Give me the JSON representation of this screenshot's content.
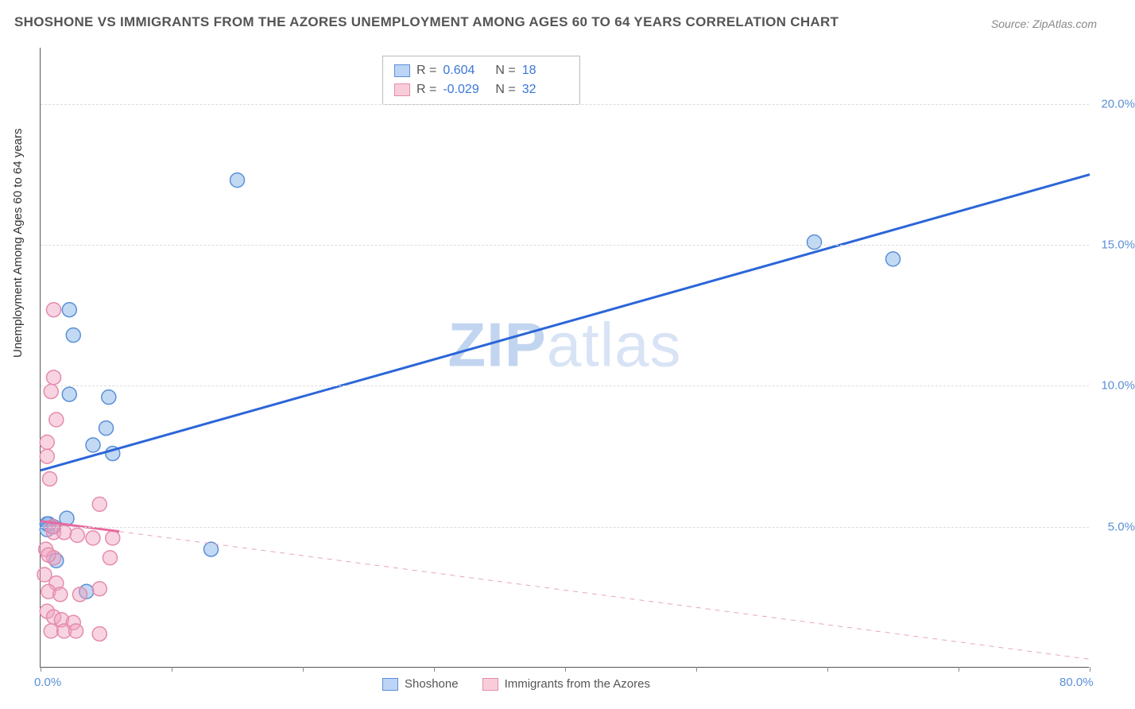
{
  "title": "SHOSHONE VS IMMIGRANTS FROM THE AZORES UNEMPLOYMENT AMONG AGES 60 TO 64 YEARS CORRELATION CHART",
  "source": "Source: ZipAtlas.com",
  "watermark_zip": "ZIP",
  "watermark_atlas": "atlas",
  "y_axis_label": "Unemployment Among Ages 60 to 64 years",
  "chart": {
    "type": "scatter",
    "xlim": [
      0,
      80
    ],
    "ylim": [
      0,
      22
    ],
    "xticks": [
      0,
      10,
      20,
      30,
      40,
      50,
      60,
      70,
      80
    ],
    "xtick_labels": {
      "0": "0.0%",
      "80": "80.0%"
    },
    "yticks": [
      5,
      10,
      15,
      20
    ],
    "ytick_labels": {
      "5": "5.0%",
      "10": "10.0%",
      "15": "15.0%",
      "20": "20.0%"
    },
    "background_color": "#ffffff",
    "grid_color": "#dddddd",
    "axis_color": "#555555",
    "tick_label_color": "#5b8fd6",
    "marker_radius": 9,
    "series": [
      {
        "name": "Shoshone",
        "color_fill": "rgba(120,170,230,0.45)",
        "color_stroke": "#5b8fd6",
        "points": [
          [
            2.2,
            12.7
          ],
          [
            2.5,
            11.8
          ],
          [
            2.2,
            9.7
          ],
          [
            5.2,
            9.6
          ],
          [
            15.0,
            17.3
          ],
          [
            5.0,
            8.5
          ],
          [
            4.0,
            7.9
          ],
          [
            5.5,
            7.6
          ],
          [
            13.0,
            4.2
          ],
          [
            0.6,
            5.1
          ],
          [
            0.5,
            5.1
          ],
          [
            0.5,
            4.9
          ],
          [
            1.2,
            3.8
          ],
          [
            3.5,
            2.7
          ],
          [
            2.0,
            5.3
          ],
          [
            1.0,
            5.0
          ],
          [
            59.0,
            15.1
          ],
          [
            65.0,
            14.5
          ]
        ],
        "trend": {
          "x1": 0,
          "y1": 7.0,
          "x2": 80,
          "y2": 17.5,
          "solid_until_x": 80
        },
        "line_color": "#2b66d8",
        "line_width": 3
      },
      {
        "name": "Immigrants from the Azores",
        "color_fill": "rgba(240,160,190,0.45)",
        "color_stroke": "#e58bac",
        "points": [
          [
            1.0,
            12.7
          ],
          [
            1.0,
            10.3
          ],
          [
            0.8,
            9.8
          ],
          [
            1.2,
            8.8
          ],
          [
            0.5,
            8.0
          ],
          [
            0.5,
            7.5
          ],
          [
            0.7,
            6.7
          ],
          [
            4.5,
            5.8
          ],
          [
            1.0,
            4.8
          ],
          [
            1.8,
            4.8
          ],
          [
            2.8,
            4.7
          ],
          [
            4.0,
            4.6
          ],
          [
            5.5,
            4.6
          ],
          [
            0.4,
            4.2
          ],
          [
            1.0,
            3.9
          ],
          [
            5.3,
            3.9
          ],
          [
            0.3,
            3.3
          ],
          [
            1.2,
            3.0
          ],
          [
            4.5,
            2.8
          ],
          [
            0.6,
            2.7
          ],
          [
            1.5,
            2.6
          ],
          [
            3.0,
            2.6
          ],
          [
            0.5,
            2.0
          ],
          [
            1.0,
            1.8
          ],
          [
            1.6,
            1.7
          ],
          [
            2.5,
            1.6
          ],
          [
            0.8,
            1.3
          ],
          [
            1.8,
            1.3
          ],
          [
            2.7,
            1.3
          ],
          [
            4.5,
            1.2
          ],
          [
            0.6,
            4.0
          ],
          [
            0.9,
            5.0
          ]
        ],
        "trend": {
          "x1": 0,
          "y1": 5.2,
          "x2": 80,
          "y2": 0.3,
          "solid_until_x": 6
        },
        "line_color": "#e76ba0",
        "line_dash_color": "#e9a4bd",
        "line_width": 3
      }
    ]
  },
  "stats_legend": {
    "rows": [
      {
        "swatch": "blue",
        "r_label": "R =",
        "r": "0.604",
        "n_label": "N =",
        "n": "18"
      },
      {
        "swatch": "pink",
        "r_label": "R =",
        "r": "-0.029",
        "n_label": "N =",
        "n": "32"
      }
    ]
  },
  "bottom_legend": {
    "items": [
      {
        "swatch": "blue",
        "label": "Shoshone"
      },
      {
        "swatch": "pink",
        "label": "Immigrants from the Azores"
      }
    ]
  }
}
